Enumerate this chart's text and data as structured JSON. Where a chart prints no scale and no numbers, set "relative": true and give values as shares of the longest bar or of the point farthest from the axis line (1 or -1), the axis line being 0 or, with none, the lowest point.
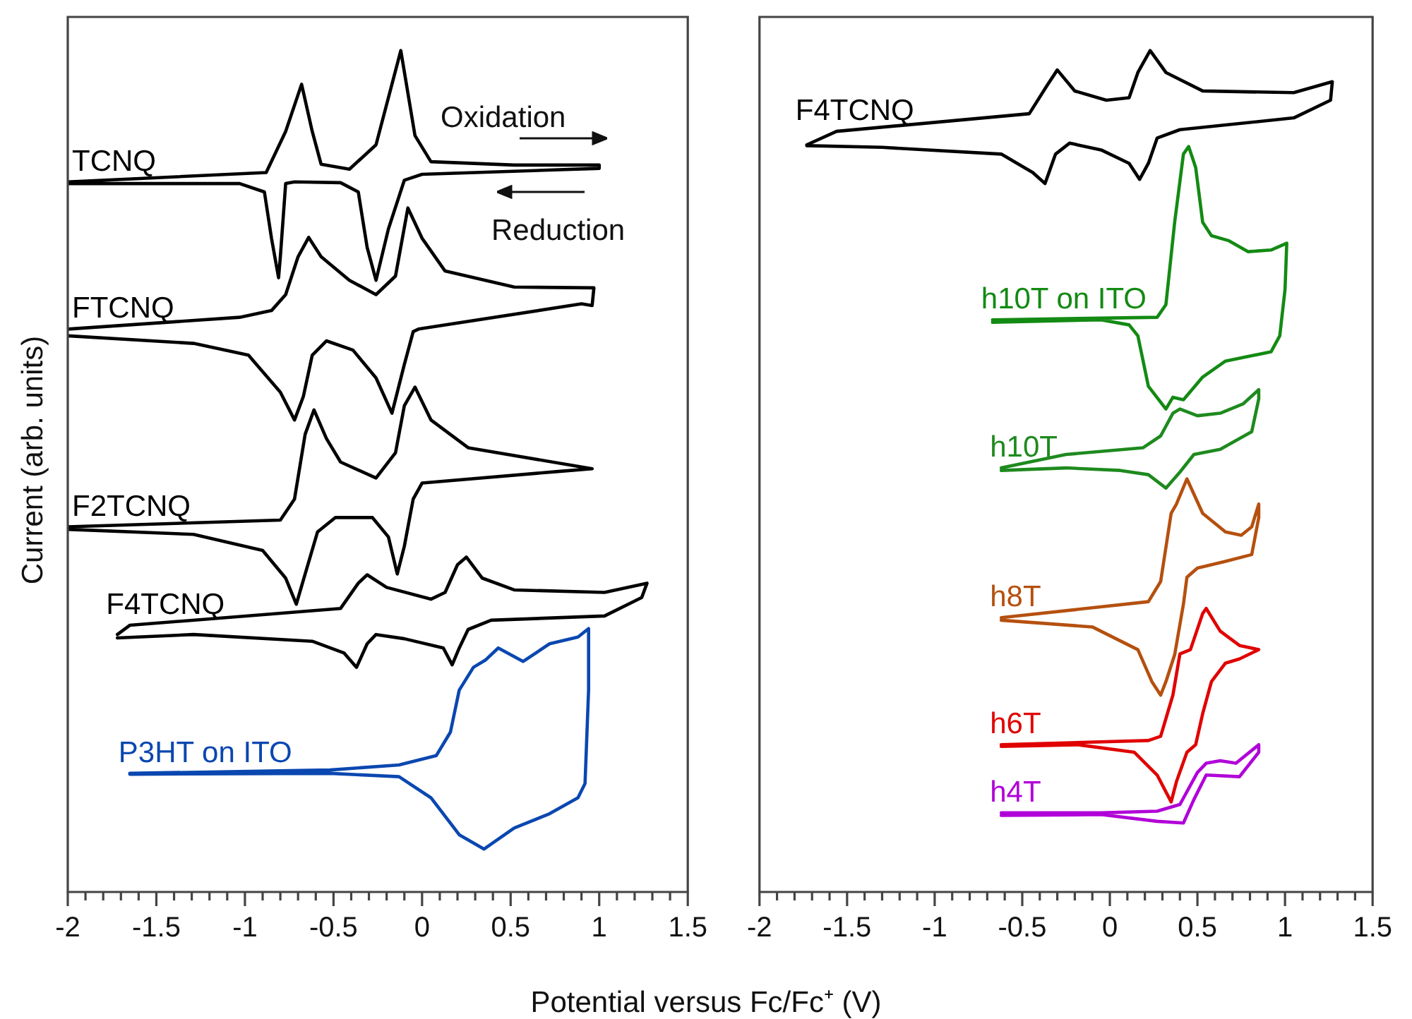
{
  "chart_data": [
    {
      "type": "line",
      "relative": true,
      "marker": "none",
      "xlabel": "Potential versus Fc/Fc⁺ (V)",
      "ylabel": "Current (arb. units)",
      "annotations": [
        "Oxidation",
        "Reduction"
      ],
      "xlim": [
        -2,
        1.5
      ],
      "xticks": [
        -2,
        {
          "value": -1.9,
          "label": null
        },
        {
          "value": -1.8,
          "label": null
        },
        {
          "value": -1.7,
          "label": null
        },
        {
          "value": -1.6,
          "label": null
        },
        -1.5,
        {
          "value": -1.4,
          "label": null
        },
        {
          "value": -1.3,
          "label": null
        },
        {
          "value": -1.2,
          "label": null
        },
        {
          "value": -1.1,
          "label": null
        },
        -1,
        {
          "value": -0.9,
          "label": null
        },
        {
          "value": -0.8,
          "label": null
        },
        {
          "value": -0.7,
          "label": null
        },
        {
          "value": -0.6,
          "label": null
        },
        -0.5,
        {
          "value": -0.4,
          "label": null
        },
        {
          "value": -0.3,
          "label": null
        },
        {
          "value": -0.2,
          "label": null
        },
        {
          "value": -0.1,
          "label": null
        },
        0,
        {
          "value": 0.1,
          "label": null
        },
        {
          "value": 0.2,
          "label": null
        },
        {
          "value": 0.3,
          "label": null
        },
        {
          "value": 0.4,
          "label": null
        },
        0.5,
        {
          "value": 0.6,
          "label": null
        },
        {
          "value": 0.7,
          "label": null
        },
        {
          "value": 0.8,
          "label": null
        },
        {
          "value": 0.9,
          "label": null
        },
        1,
        {
          "value": 1.1,
          "label": null
        },
        {
          "value": 1.2,
          "label": null
        },
        {
          "value": 1.3,
          "label": null
        },
        {
          "value": 1.4,
          "label": null
        },
        1.5
      ],
      "series": [
        {
          "name": "TCNQ",
          "color": "#000000",
          "x": [
            -2.0,
            -0.88,
            -0.77,
            -0.68,
            -0.62,
            -0.57,
            -0.41,
            -0.26,
            -0.12,
            -0.04,
            0.05,
            0.52,
            1.0,
            1.0,
            0.0,
            -0.1,
            -0.19,
            -0.26,
            -0.31,
            -0.36,
            -0.46,
            -0.72,
            -0.77,
            -0.8,
            -0.81,
            -0.85,
            -0.89,
            -1.03,
            -2.0
          ],
          "values": [
            0.844,
            0.855,
            0.904,
            0.96,
            0.904,
            0.865,
            0.859,
            0.888,
            1.0,
            0.899,
            0.868,
            0.864,
            0.864,
            0.86,
            0.853,
            0.846,
            0.788,
            0.727,
            0.766,
            0.832,
            0.843,
            0.844,
            0.842,
            0.755,
            0.73,
            0.777,
            0.832,
            0.842,
            0.842
          ]
        },
        {
          "name": "FTCNQ",
          "color": "#000000",
          "x": [
            -2.0,
            -1.03,
            -0.85,
            -0.77,
            -0.7,
            -0.64,
            -0.57,
            -0.41,
            -0.26,
            -0.15,
            -0.08,
            0.0,
            0.13,
            0.52,
            0.97,
            0.96,
            0.9,
            -0.02,
            -0.05,
            -0.1,
            -0.17,
            -0.26,
            -0.39,
            -0.54,
            -0.62,
            -0.67,
            -0.72,
            -0.8,
            -0.98,
            -1.29,
            -2.0
          ],
          "values": [
            0.669,
            0.683,
            0.691,
            0.71,
            0.755,
            0.778,
            0.755,
            0.727,
            0.71,
            0.732,
            0.813,
            0.777,
            0.738,
            0.719,
            0.718,
            0.697,
            0.699,
            0.669,
            0.666,
            0.627,
            0.569,
            0.611,
            0.644,
            0.655,
            0.638,
            0.589,
            0.561,
            0.594,
            0.638,
            0.652,
            0.661
          ]
        },
        {
          "name": "F2TCNQ",
          "color": "#000000",
          "x": [
            -2.0,
            -0.8,
            -0.72,
            -0.66,
            -0.61,
            -0.54,
            -0.46,
            -0.26,
            -0.15,
            -0.1,
            -0.04,
            0.05,
            0.26,
            0.96,
            0.78,
            0.0,
            -0.05,
            -0.1,
            -0.14,
            -0.19,
            -0.28,
            -0.49,
            -0.59,
            -0.66,
            -0.71,
            -0.77,
            -0.9,
            -1.29,
            -2.0
          ],
          "values": [
            0.434,
            0.442,
            0.467,
            0.544,
            0.573,
            0.539,
            0.511,
            0.492,
            0.522,
            0.578,
            0.6,
            0.561,
            0.528,
            0.503,
            0.5,
            0.486,
            0.467,
            0.411,
            0.378,
            0.422,
            0.445,
            0.445,
            0.428,
            0.378,
            0.342,
            0.373,
            0.406,
            0.425,
            0.431
          ]
        },
        {
          "name": "F4TCNQ",
          "color": "#000000",
          "x": [
            -1.72,
            -1.65,
            -0.46,
            -0.36,
            -0.31,
            -0.2,
            0.05,
            0.13,
            0.2,
            0.25,
            0.34,
            0.52,
            1.03,
            1.27,
            1.24,
            1.03,
            0.39,
            0.26,
            0.21,
            0.17,
            0.12,
            -0.1,
            -0.26,
            -0.31,
            -0.37,
            -0.44,
            -0.62,
            -1.29,
            -1.72
          ],
          "values": [
            0.306,
            0.317,
            0.337,
            0.367,
            0.377,
            0.362,
            0.348,
            0.356,
            0.389,
            0.398,
            0.373,
            0.359,
            0.356,
            0.367,
            0.35,
            0.328,
            0.323,
            0.312,
            0.29,
            0.27,
            0.29,
            0.301,
            0.306,
            0.295,
            0.267,
            0.284,
            0.298,
            0.306,
            0.302
          ]
        },
        {
          "name": "P3HT on ITO",
          "color": "#0a47b0",
          "x": [
            -1.65,
            -0.52,
            -0.13,
            0.08,
            0.16,
            0.21,
            0.29,
            0.36,
            0.43,
            0.57,
            0.72,
            0.88,
            0.94,
            0.94,
            0.92,
            0.88,
            0.72,
            0.52,
            0.35,
            0.21,
            0.05,
            -0.13,
            -0.52,
            -1.65
          ],
          "values": [
            0.141,
            0.145,
            0.151,
            0.162,
            0.19,
            0.24,
            0.267,
            0.276,
            0.29,
            0.274,
            0.295,
            0.303,
            0.313,
            0.24,
            0.129,
            0.112,
            0.093,
            0.076,
            0.051,
            0.068,
            0.112,
            0.137,
            0.141,
            0.14
          ]
        }
      ]
    },
    {
      "type": "line",
      "relative": true,
      "marker": "none",
      "xlim": [
        -2,
        1.5
      ],
      "xticks": [
        -2,
        {
          "value": -1.9,
          "label": null
        },
        {
          "value": -1.8,
          "label": null
        },
        {
          "value": -1.7,
          "label": null
        },
        {
          "value": -1.6,
          "label": null
        },
        -1.5,
        {
          "value": -1.4,
          "label": null
        },
        {
          "value": -1.3,
          "label": null
        },
        {
          "value": -1.2,
          "label": null
        },
        {
          "value": -1.1,
          "label": null
        },
        -1,
        {
          "value": -0.9,
          "label": null
        },
        {
          "value": -0.8,
          "label": null
        },
        {
          "value": -0.7,
          "label": null
        },
        {
          "value": -0.6,
          "label": null
        },
        -0.5,
        {
          "value": -0.4,
          "label": null
        },
        {
          "value": -0.3,
          "label": null
        },
        {
          "value": -0.2,
          "label": null
        },
        {
          "value": -0.1,
          "label": null
        },
        0,
        {
          "value": 0.1,
          "label": null
        },
        {
          "value": 0.2,
          "label": null
        },
        {
          "value": 0.3,
          "label": null
        },
        {
          "value": 0.4,
          "label": null
        },
        0.5,
        {
          "value": 0.6,
          "label": null
        },
        {
          "value": 0.7,
          "label": null
        },
        {
          "value": 0.8,
          "label": null
        },
        {
          "value": 0.9,
          "label": null
        },
        1,
        {
          "value": 1.1,
          "label": null
        },
        {
          "value": 1.2,
          "label": null
        },
        {
          "value": 1.3,
          "label": null
        },
        {
          "value": 1.4,
          "label": null
        },
        1.5
      ],
      "series": [
        {
          "name": "F4TCNQ",
          "color": "#000000",
          "x": [
            -1.73,
            -1.56,
            -0.46,
            -0.36,
            -0.3,
            -0.2,
            -0.02,
            0.11,
            0.16,
            0.23,
            0.32,
            0.53,
            1.05,
            1.27,
            1.26,
            1.05,
            0.4,
            0.27,
            0.22,
            0.17,
            0.11,
            -0.05,
            -0.23,
            -0.31,
            -0.37,
            -0.44,
            -0.62,
            -1.3,
            -1.73
          ],
          "values": [
            0.888,
            0.904,
            0.925,
            0.958,
            0.977,
            0.952,
            0.941,
            0.944,
            0.974,
            1.0,
            0.974,
            0.952,
            0.95,
            0.963,
            0.941,
            0.92,
            0.906,
            0.896,
            0.866,
            0.847,
            0.866,
            0.882,
            0.89,
            0.877,
            0.842,
            0.855,
            0.877,
            0.885,
            0.887
          ]
        },
        {
          "name": "h10T on ITO",
          "color": "#138a13",
          "x": [
            -0.67,
            0.27,
            0.32,
            0.37,
            0.42,
            0.45,
            0.49,
            0.53,
            0.58,
            0.68,
            0.79,
            0.92,
            1.01,
            1.0,
            0.97,
            0.92,
            0.66,
            0.53,
            0.42,
            0.36,
            0.32,
            0.22,
            0.16,
            0.11,
            -0.05,
            -0.67
          ],
          "values": [
            0.68,
            0.683,
            0.698,
            0.796,
            0.877,
            0.886,
            0.861,
            0.796,
            0.78,
            0.774,
            0.761,
            0.763,
            0.771,
            0.716,
            0.661,
            0.642,
            0.631,
            0.612,
            0.585,
            0.588,
            0.574,
            0.601,
            0.661,
            0.674,
            0.68,
            0.677
          ]
        },
        {
          "name": "h10T",
          "color": "#1e8a1e",
          "x": [
            -0.62,
            -0.25,
            0.19,
            0.29,
            0.36,
            0.4,
            0.5,
            0.63,
            0.76,
            0.85,
            0.85,
            0.81,
            0.63,
            0.48,
            0.4,
            0.32,
            0.22,
            0.06,
            -0.25,
            -0.62
          ],
          "values": [
            0.504,
            0.52,
            0.528,
            0.542,
            0.569,
            0.574,
            0.566,
            0.569,
            0.58,
            0.597,
            0.586,
            0.547,
            0.526,
            0.52,
            0.499,
            0.48,
            0.496,
            0.501,
            0.504,
            0.501
          ]
        },
        {
          "name": "h8T",
          "color": "#b5500f",
          "x": [
            -0.62,
            0.22,
            0.29,
            0.35,
            0.38,
            0.44,
            0.53,
            0.66,
            0.75,
            0.81,
            0.85,
            0.85,
            0.81,
            0.66,
            0.5,
            0.44,
            0.42,
            0.37,
            0.32,
            0.29,
            0.24,
            0.16,
            -0.1,
            -0.62
          ],
          "values": [
            0.326,
            0.345,
            0.369,
            0.45,
            0.461,
            0.491,
            0.45,
            0.428,
            0.424,
            0.434,
            0.461,
            0.445,
            0.401,
            0.393,
            0.385,
            0.374,
            0.342,
            0.282,
            0.25,
            0.234,
            0.25,
            0.288,
            0.315,
            0.323
          ]
        },
        {
          "name": "h6T",
          "color": "#e00000",
          "x": [
            -0.62,
            0.22,
            0.29,
            0.36,
            0.4,
            0.46,
            0.53,
            0.55,
            0.63,
            0.74,
            0.85,
            0.74,
            0.66,
            0.58,
            0.53,
            0.49,
            0.44,
            0.38,
            0.35,
            0.27,
            0.14,
            -0.18,
            -0.62
          ],
          "values": [
            0.175,
            0.18,
            0.185,
            0.234,
            0.283,
            0.288,
            0.331,
            0.337,
            0.31,
            0.293,
            0.288,
            0.277,
            0.272,
            0.25,
            0.212,
            0.175,
            0.166,
            0.131,
            0.107,
            0.139,
            0.166,
            0.175,
            0.173
          ]
        },
        {
          "name": "h4T",
          "color": "#b000d8",
          "x": [
            -0.62,
            -0.05,
            0.27,
            0.4,
            0.5,
            0.55,
            0.63,
            0.72,
            0.85,
            0.85,
            0.74,
            0.55,
            0.48,
            0.42,
            0.27,
            -0.05,
            -0.62
          ],
          "values": [
            0.094,
            0.094,
            0.096,
            0.104,
            0.142,
            0.153,
            0.156,
            0.153,
            0.175,
            0.166,
            0.137,
            0.139,
            0.11,
            0.082,
            0.084,
            0.092,
            0.091
          ]
        }
      ]
    }
  ]
}
